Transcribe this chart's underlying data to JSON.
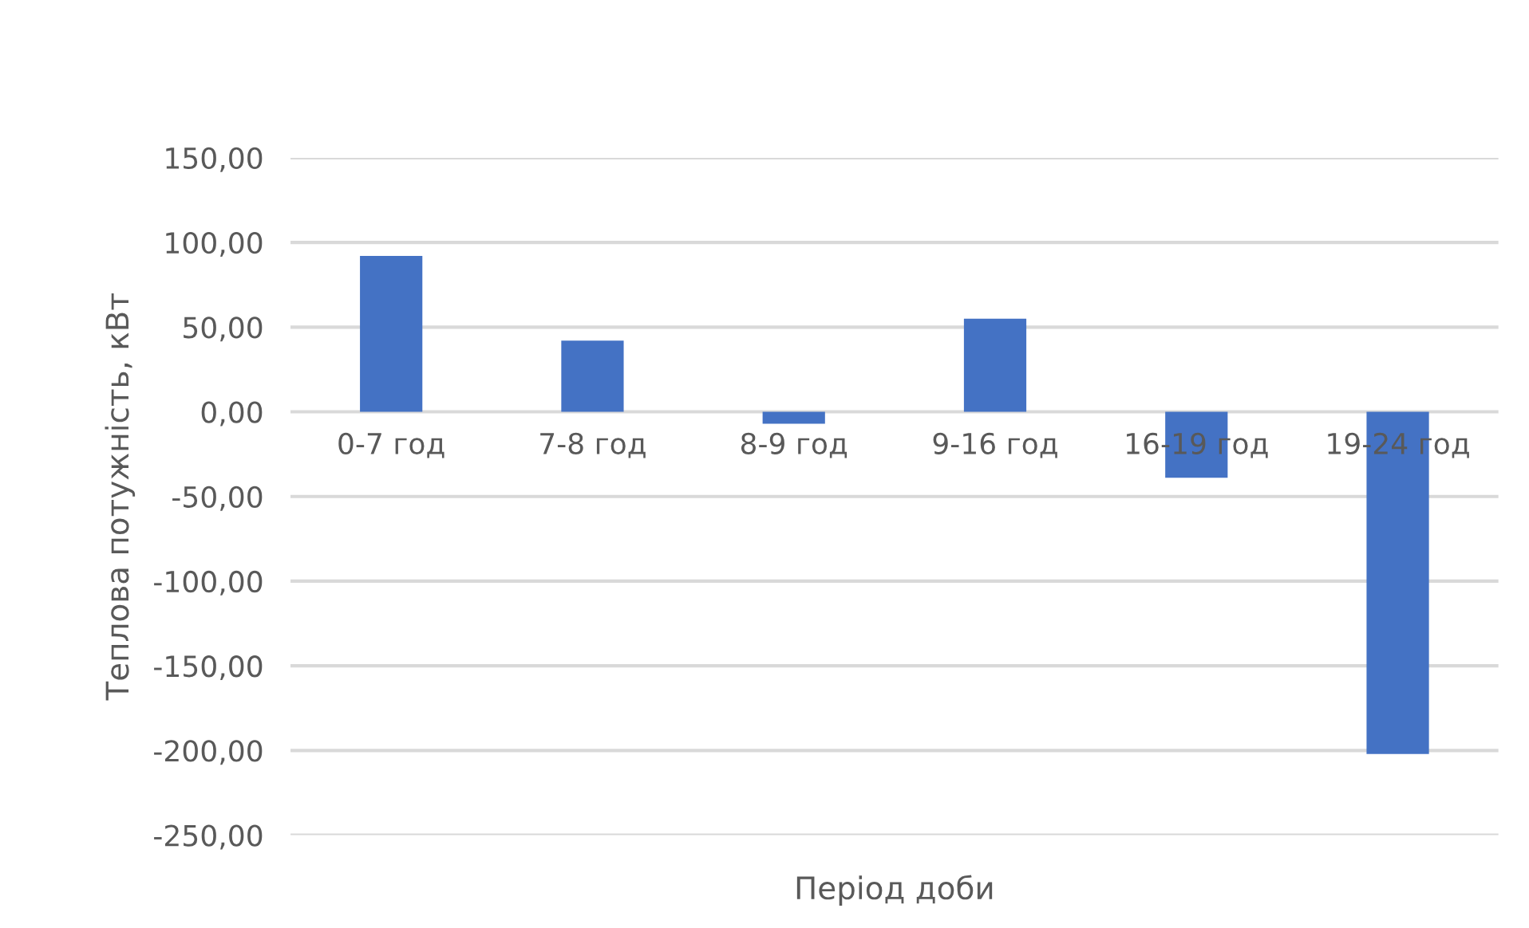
{
  "chart_data": {
    "type": "bar",
    "xlabel": "Період доби",
    "ylabel": "Теплова потужність, кВт",
    "categories": [
      "0-7 год",
      "7-8 год",
      "8-9 год",
      "9-16 год",
      "16-19 год",
      "19-24 год"
    ],
    "values": [
      92,
      42,
      -7,
      55,
      -39,
      -202
    ],
    "color": "#4472c4",
    "ylim": [
      -250,
      150
    ],
    "yticks": [
      {
        "value": -250,
        "label": "-250,00"
      },
      {
        "value": -200,
        "label": "-200,00"
      },
      {
        "value": -150,
        "label": "-150,00"
      },
      {
        "value": -100,
        "label": "-100,00"
      },
      {
        "value": -50,
        "label": "-50,00"
      },
      {
        "value": 0,
        "label": "0,00"
      },
      {
        "value": 50,
        "label": "50,00"
      },
      {
        "value": 100,
        "label": "100,00"
      },
      {
        "value": 150,
        "label": "150,00"
      }
    ],
    "grid": "y"
  }
}
